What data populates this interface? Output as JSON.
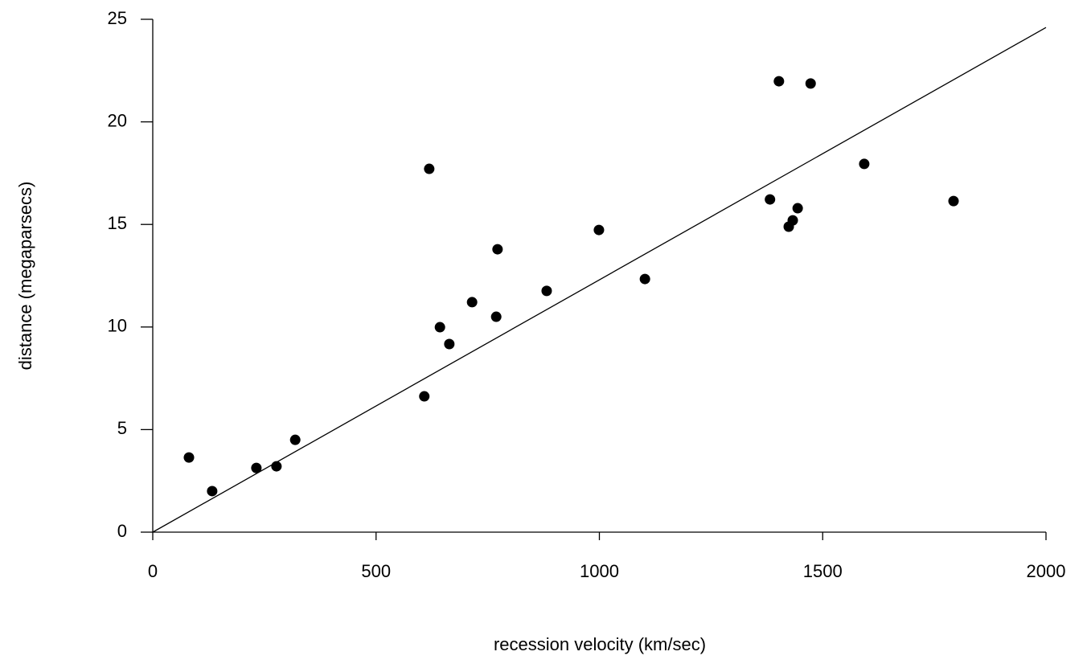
{
  "chart_data": {
    "type": "scatter",
    "x_label": "recession velocity (km/sec)",
    "y_label": "distance (megaparsecs)",
    "xlim": [
      0,
      2000
    ],
    "xticks": [
      0,
      500,
      1000,
      1500,
      2000
    ],
    "ylim": [
      0,
      25
    ],
    "yticks": [
      0,
      5,
      10,
      15,
      20,
      25
    ],
    "color": "#000000",
    "x": [
      81,
      133,
      232,
      277,
      319,
      608,
      619,
      643,
      664,
      715,
      769,
      772,
      882,
      999,
      1102,
      1382,
      1402,
      1424,
      1433,
      1444,
      1473,
      1593,
      1793
    ],
    "values": [
      3.64,
      2.0,
      3.13,
      3.21,
      4.5,
      6.62,
      17.71,
      9.99,
      9.17,
      11.21,
      10.5,
      13.79,
      11.76,
      14.73,
      12.34,
      16.22,
      21.98,
      14.89,
      15.2,
      15.79,
      21.87,
      17.95,
      16.14
    ],
    "trend_line": {
      "x": [
        0,
        2000
      ],
      "y": [
        0,
        24.6
      ]
    }
  }
}
